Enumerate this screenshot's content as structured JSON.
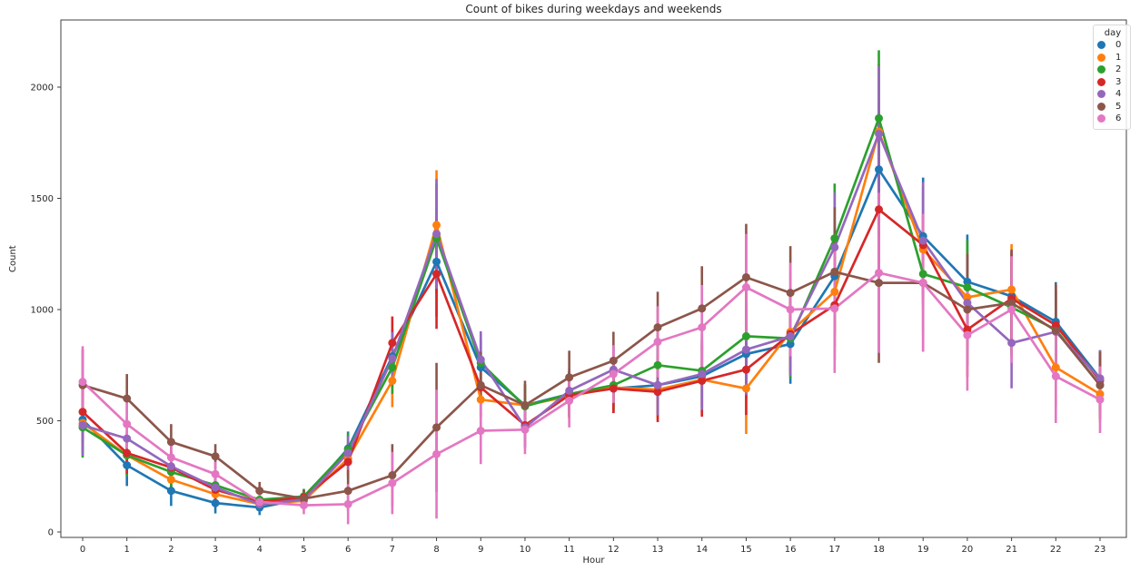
{
  "chart_data": {
    "type": "line",
    "title": "Count of bikes during weekdays and weekends",
    "xlabel": "Hour",
    "ylabel": "Count",
    "x": [
      0,
      1,
      2,
      3,
      4,
      5,
      6,
      7,
      8,
      9,
      10,
      11,
      12,
      13,
      14,
      15,
      16,
      17,
      18,
      19,
      20,
      21,
      22,
      23
    ],
    "x_tick_labels": [
      "0",
      "1",
      "2",
      "3",
      "4",
      "5",
      "6",
      "7",
      "8",
      "9",
      "10",
      "11",
      "12",
      "13",
      "14",
      "15",
      "16",
      "17",
      "18",
      "19",
      "20",
      "21",
      "22",
      "23"
    ],
    "y_ticks": [
      0,
      500,
      1000,
      1500,
      2000
    ],
    "ylim": [
      -20,
      2300
    ],
    "grid": false,
    "legend": {
      "title": "day",
      "position": "upper right"
    },
    "series": [
      {
        "name": "0",
        "color": "#1f77b4",
        "values": [
          505,
          300,
          185,
          130,
          110,
          150,
          375,
          790,
          1215,
          740,
          570,
          620,
          645,
          660,
          700,
          800,
          845,
          1150,
          1630,
          1330,
          1125,
          1060,
          945,
          690
        ]
      },
      {
        "name": "1",
        "color": "#ff7f0e",
        "values": [
          490,
          345,
          235,
          170,
          125,
          140,
          330,
          680,
          1380,
          595,
          570,
          610,
          650,
          640,
          685,
          645,
          900,
          1080,
          1800,
          1270,
          1055,
          1090,
          740,
          620
        ]
      },
      {
        "name": "2",
        "color": "#2ca02c",
        "values": [
          470,
          345,
          270,
          210,
          145,
          160,
          370,
          740,
          1320,
          760,
          565,
          620,
          660,
          750,
          725,
          880,
          870,
          1320,
          1860,
          1160,
          1100,
          1010,
          910,
          660
        ]
      },
      {
        "name": "3",
        "color": "#d62728",
        "values": [
          540,
          355,
          290,
          190,
          135,
          155,
          315,
          850,
          1160,
          650,
          480,
          615,
          645,
          630,
          680,
          730,
          890,
          1020,
          1450,
          1290,
          910,
          1050,
          930,
          680
        ]
      },
      {
        "name": "4",
        "color": "#9467bd",
        "values": [
          480,
          420,
          295,
          200,
          125,
          145,
          355,
          780,
          1340,
          775,
          470,
          635,
          730,
          660,
          710,
          820,
          880,
          1280,
          1790,
          1310,
          1030,
          850,
          900,
          690
        ]
      },
      {
        "name": "5",
        "color": "#8c564b",
        "values": [
          660,
          600,
          405,
          340,
          185,
          150,
          185,
          255,
          470,
          660,
          570,
          695,
          770,
          920,
          1005,
          1145,
          1075,
          1170,
          1120,
          1120,
          1000,
          1030,
          905,
          660
        ]
      },
      {
        "name": "6",
        "color": "#e377c2",
        "values": [
          675,
          485,
          335,
          260,
          135,
          120,
          125,
          220,
          350,
          455,
          460,
          590,
          710,
          855,
          920,
          1100,
          1000,
          1005,
          1165,
          1120,
          885,
          1000,
          700,
          595
        ]
      }
    ],
    "error_half_width": [
      [
        0,
        0,
        0,
        0,
        0,
        0,
        0,
        0,
        0,
        0,
        0,
        0,
        0,
        0,
        0,
        0,
        0,
        0,
        0,
        0,
        0,
        0,
        0,
        0
      ]
    ]
  }
}
